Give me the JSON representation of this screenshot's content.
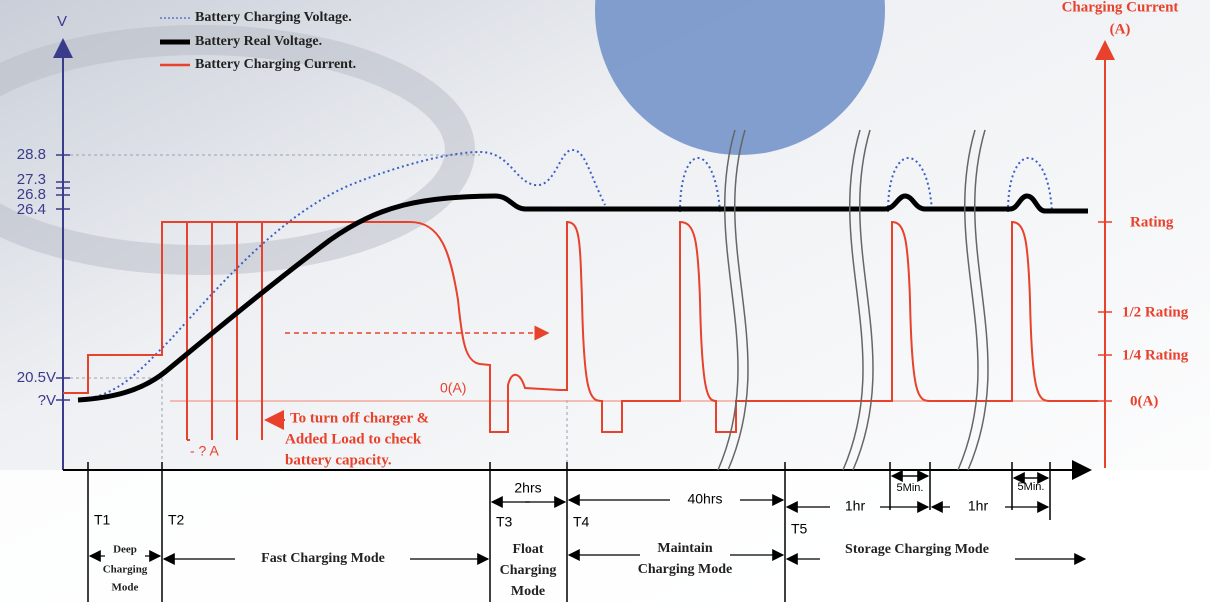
{
  "legend": [
    "Battery Charging Voltage.",
    "Battery Real Voltage.",
    "Battery Charging Current."
  ],
  "left_axis": {
    "title": "V",
    "ticks": [
      "28.8",
      "27.3",
      "26.8",
      "26.4",
      "20.5V",
      "?V"
    ]
  },
  "right_axis": {
    "title": [
      "Charging Current",
      "(A)"
    ],
    "ticks": [
      "Rating",
      "1/2 Rating",
      "1/4 Rating",
      "0(A)"
    ]
  },
  "annotations": {
    "zero": "0(A)",
    "negative": "- ? A",
    "note": [
      "To turn off charger &",
      "Added Load to check",
      "battery capacity."
    ]
  },
  "durations": [
    "2hrs",
    "40hrs",
    "1hr",
    "1hr",
    "5Min.",
    "5Min."
  ],
  "times": [
    "T1",
    "T2",
    "T3",
    "T4",
    "T5"
  ],
  "modes": [
    [
      "Deep",
      "Charging",
      "Mode"
    ],
    [
      "Fast Charging Mode"
    ],
    [
      "Float",
      "Charging",
      "Mode"
    ],
    [
      "Maintain",
      "Charging Mode"
    ],
    [
      "Storage Charging Mode"
    ]
  ]
}
